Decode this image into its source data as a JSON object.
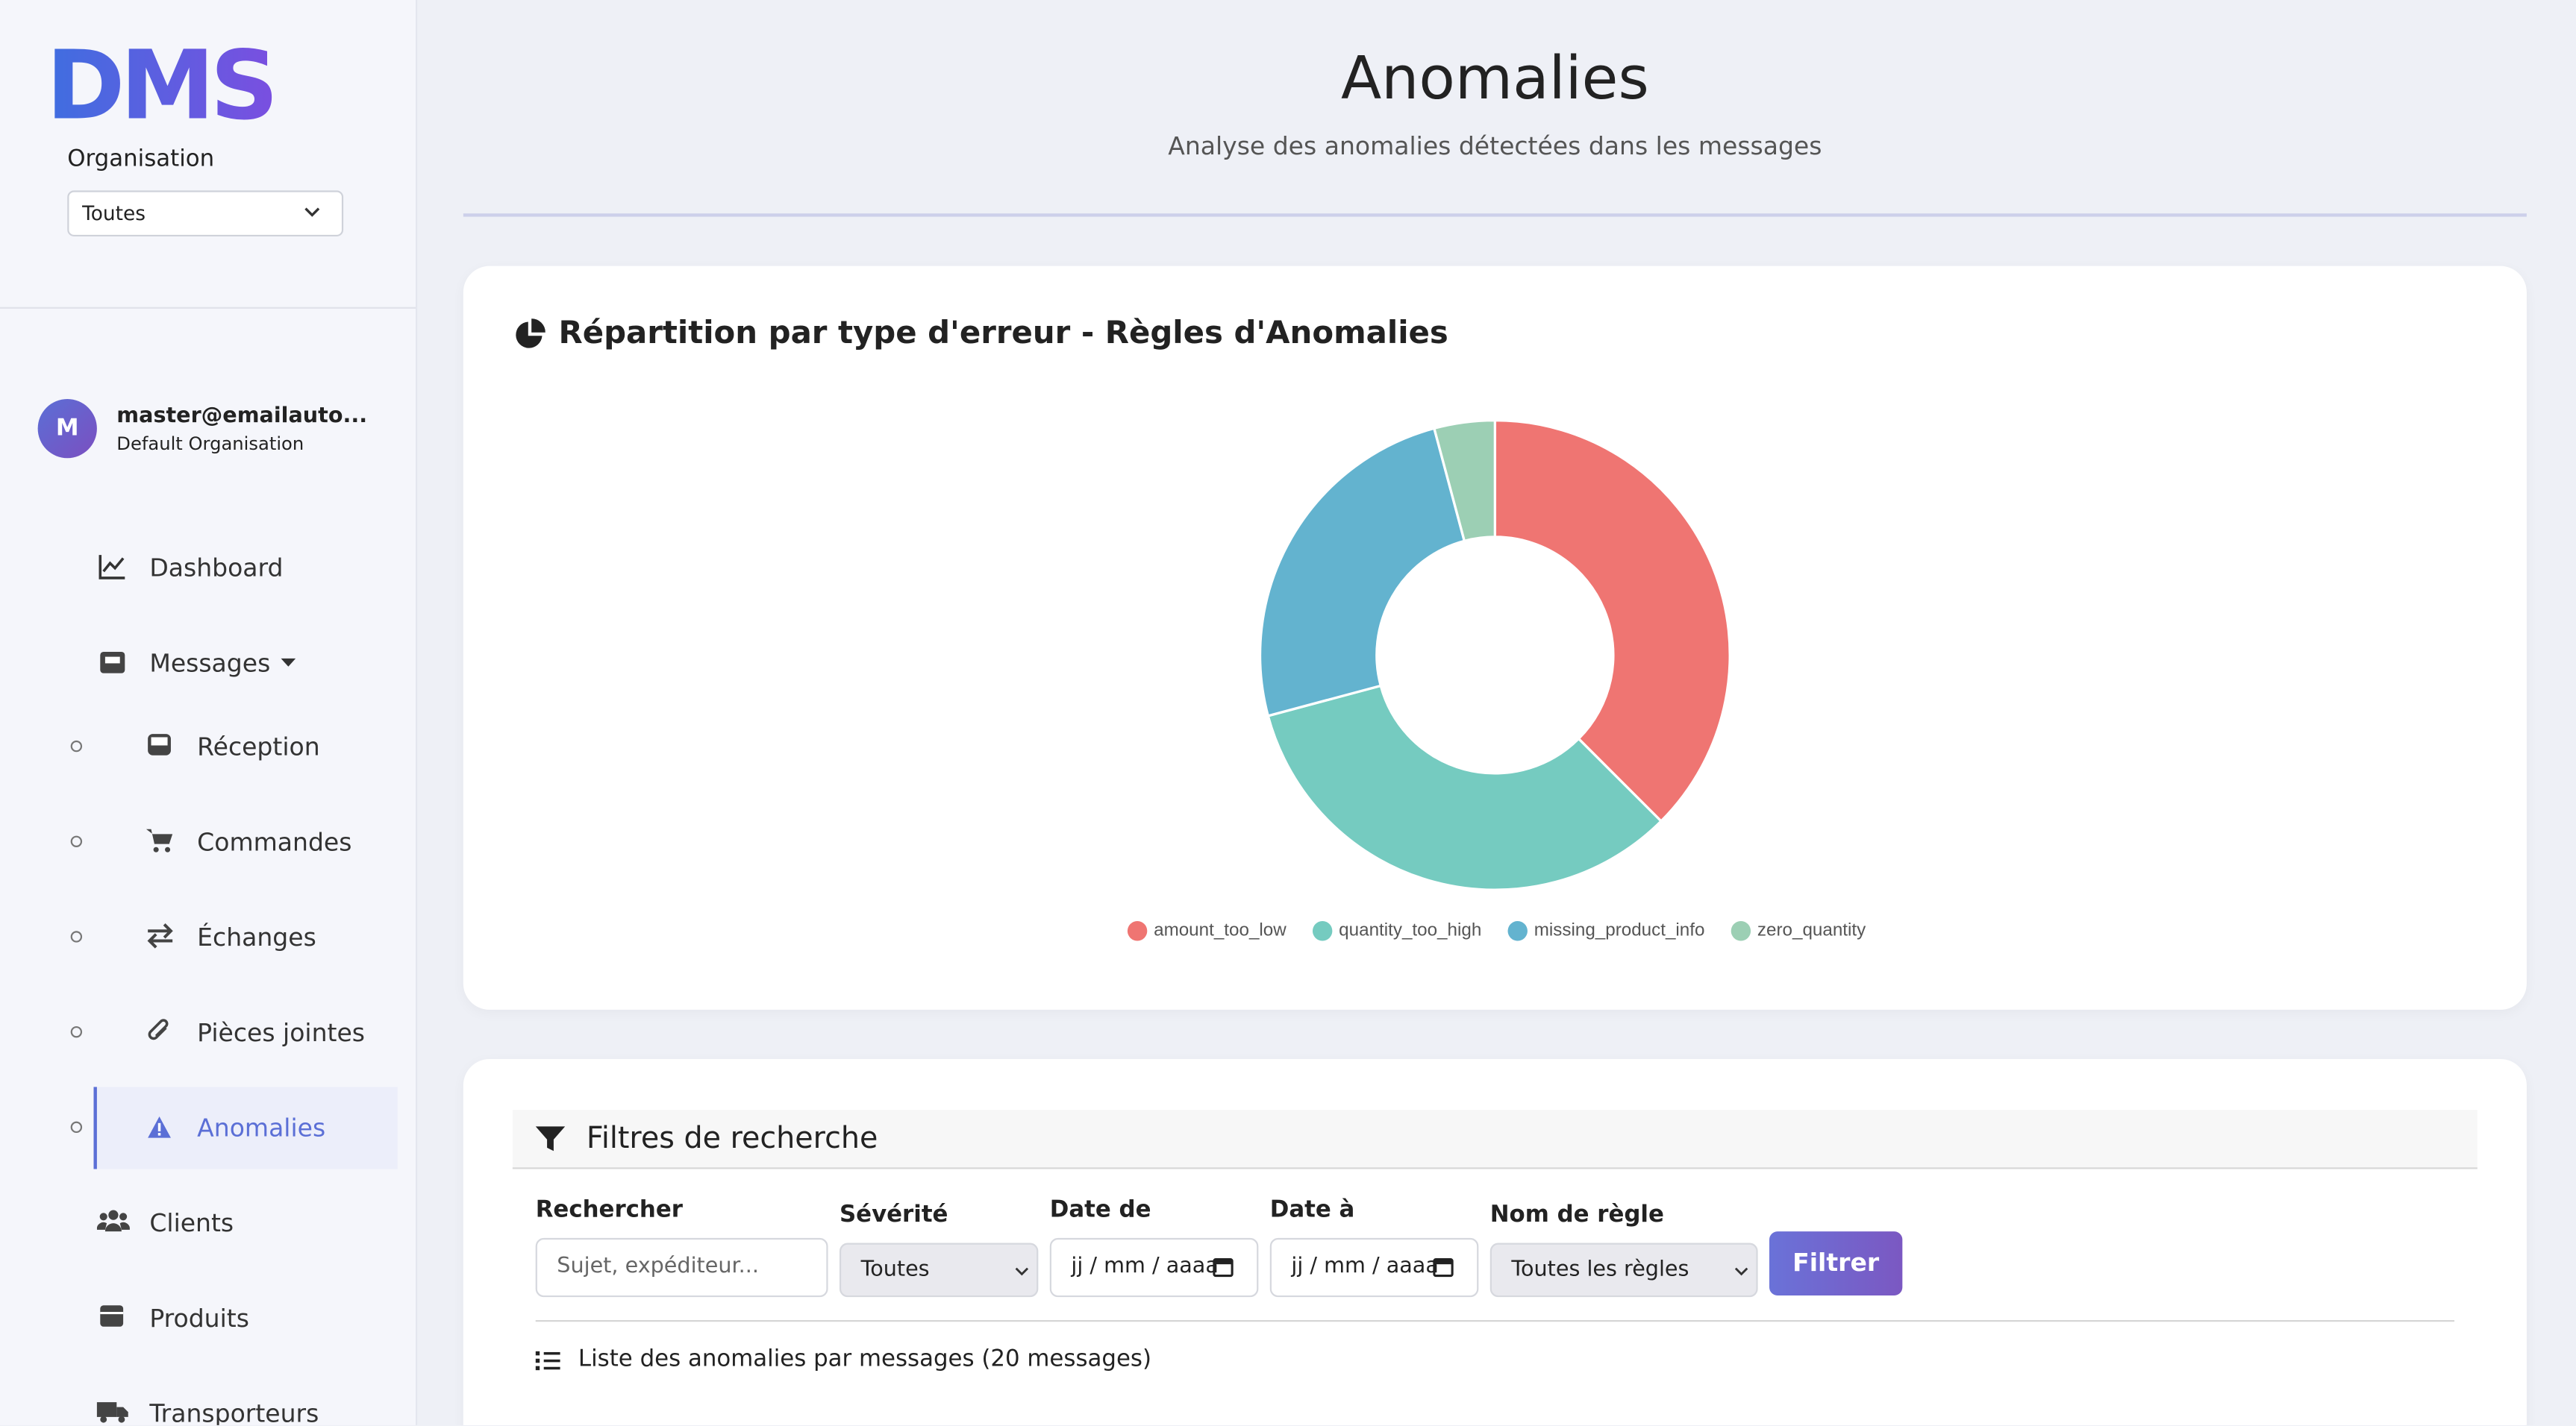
{
  "sidebar": {
    "logo": "DMS",
    "organisation_label": "Organisation",
    "organisation_select": "Toutes",
    "user": {
      "initial": "M",
      "email": "master@emailauto...",
      "organisation": "Default Organisation"
    },
    "nav": [
      "Dashboard",
      "Messages",
      "Réception",
      "Commandes",
      "Échanges",
      "Pièces jointes",
      "Anomalies",
      "Clients",
      "Produits",
      "Transporteurs"
    ]
  },
  "header": {
    "title": "Anomalies",
    "subtitle": "Analyse des anomalies détectées dans les messages"
  },
  "chart_data": {
    "type": "pie",
    "title": "Répartition par type d'erreur - Règles d'Anomalies",
    "categories": [
      "amount_too_low",
      "quantity_too_high",
      "missing_product_info",
      "zero_quantity"
    ],
    "values": [
      9,
      8,
      6,
      1
    ],
    "colors": [
      "#ef7572",
      "#75cbc0",
      "#63b3cf",
      "#9ccfb4"
    ]
  },
  "filters": {
    "title": "Filtres de recherche",
    "search_label": "Rechercher",
    "search_placeholder": "Sujet, expéditeur...",
    "severity_label": "Sévérité",
    "severity_value": "Toutes",
    "date_from_label": "Date de",
    "date_from_value": "jj / mm / aaaa",
    "date_to_label": "Date à",
    "date_to_value": "jj / mm / aaaa",
    "rule_label": "Nom de règle",
    "rule_value": "Toutes les règles",
    "button": "Filtrer"
  },
  "list": {
    "title": "Liste des anomalies par messages (20 messages)"
  }
}
